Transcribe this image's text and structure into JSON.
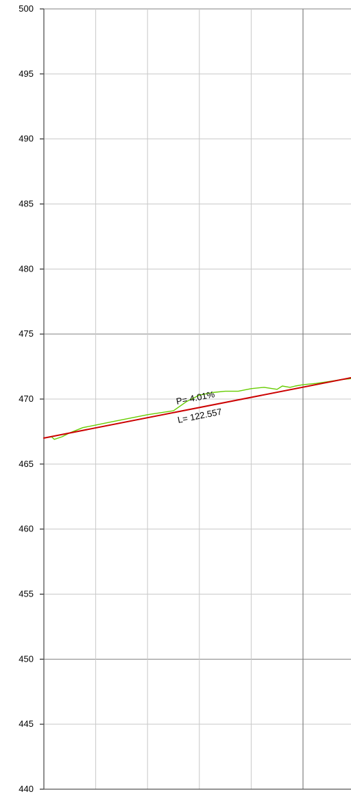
{
  "chart_data": {
    "type": "line",
    "title": "",
    "xlabel": "",
    "ylabel": "",
    "ylim": [
      440,
      500
    ],
    "y_ticks": [
      500,
      495,
      490,
      485,
      480,
      475,
      470,
      465,
      460,
      455,
      450,
      445,
      440
    ],
    "y_major_ticks": [
      500,
      475,
      450
    ],
    "x_range": [
      0,
      120
    ],
    "x_gridlines": [
      0,
      20,
      40,
      60,
      80,
      100,
      120
    ],
    "x_major_gridlines": [
      0,
      100
    ],
    "grid": true,
    "colors": {
      "terrain": "#66cc00",
      "grade": "#cc0000",
      "grid_minor": "#c8c8c8",
      "grid_major": "#808080"
    },
    "series": [
      {
        "x": [
          0,
          3,
          4,
          7,
          10,
          15,
          20,
          25,
          30,
          40,
          50,
          55,
          60,
          65,
          70,
          75,
          80,
          85,
          90,
          92,
          95,
          97,
          100,
          105,
          110,
          115,
          120
        ],
        "y": [
          467,
          467.1,
          466.9,
          467.1,
          467.4,
          467.8,
          468,
          468.2,
          468.4,
          468.8,
          469.1,
          469.8,
          470.3,
          470.5,
          470.6,
          470.6,
          470.8,
          470.9,
          470.75,
          471,
          470.9,
          471,
          471.1,
          471.2,
          471.35,
          471.5,
          471.6
        ]
      },
      {
        "x": [
          0,
          120
        ],
        "y": [
          467,
          471.7
        ]
      }
    ],
    "annotations": [
      {
        "text": "P= 4.01%"
      },
      {
        "text": "L= 122.557"
      }
    ]
  }
}
